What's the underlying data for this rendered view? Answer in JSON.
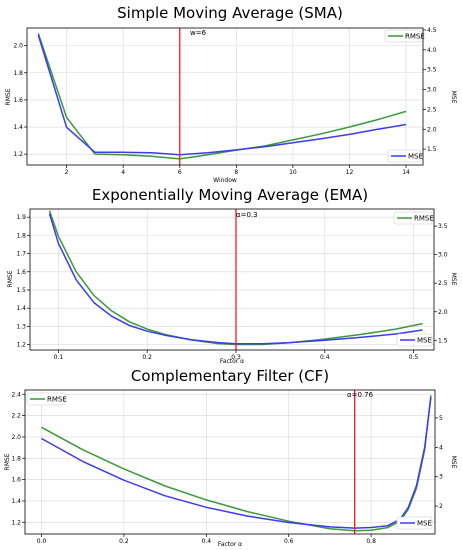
{
  "colors": {
    "rmse": "#3a9a3a",
    "mse": "#3b3bf0",
    "marker": "#ff1a1a",
    "grid": "#d9d9d9"
  },
  "chart_data": [
    {
      "type": "line",
      "title": "Simple Moving Average (SMA)",
      "xlabel": "Window",
      "ylabel": "RMSE",
      "y2label": "MSE",
      "xlim": [
        0.6,
        14.6
      ],
      "ylim": [
        1.12,
        2.13
      ],
      "y2lim": [
        1.1,
        4.55
      ],
      "xticks": [
        2,
        4,
        6,
        8,
        10,
        12,
        14
      ],
      "yticks": [
        1.2,
        1.4,
        1.6,
        1.8,
        2.0
      ],
      "y2ticks": [
        1.5,
        2.0,
        2.5,
        3.0,
        3.5,
        4.0,
        4.5
      ],
      "xtick_labels": [
        "2",
        "4",
        "6",
        "8",
        "10",
        "12",
        "14"
      ],
      "ytick_labels": [
        "1.2",
        "1.4",
        "1.6",
        "1.8",
        "2.0"
      ],
      "y2tick_labels": [
        "1.5",
        "2.0",
        "2.5",
        "3.0",
        "3.5",
        "4.0",
        "4.5"
      ],
      "marker": {
        "x": 6,
        "label": "w=6"
      },
      "legend_rmse": "top-right",
      "legend_mse": "bottom-right",
      "series": [
        {
          "name": "RMSE",
          "axis": "left",
          "x": [
            1,
            2,
            3,
            4,
            5,
            6,
            7,
            8,
            9,
            10,
            11,
            12,
            13,
            14
          ],
          "values": [
            2.09,
            1.47,
            1.2,
            1.195,
            1.185,
            1.165,
            1.195,
            1.23,
            1.26,
            1.305,
            1.35,
            1.4,
            1.455,
            1.515
          ]
        },
        {
          "name": "MSE",
          "axis": "right",
          "x": [
            1,
            2,
            3,
            4,
            5,
            6,
            7,
            8,
            9,
            10,
            11,
            12,
            13,
            14
          ],
          "values": [
            4.37,
            2.05,
            1.42,
            1.42,
            1.41,
            1.36,
            1.41,
            1.48,
            1.56,
            1.66,
            1.76,
            1.87,
            2.0,
            2.12
          ]
        }
      ]
    },
    {
      "type": "line",
      "title": "Exponentially Moving Average (EMA)",
      "xlabel": "Factor α",
      "ylabel": "RMSE",
      "y2label": "MSE",
      "xlim": [
        0.068,
        0.523
      ],
      "ylim": [
        1.17,
        1.945
      ],
      "y2lim": [
        1.33,
        3.8
      ],
      "xticks": [
        0.1,
        0.2,
        0.3,
        0.4,
        0.5
      ],
      "yticks": [
        1.2,
        1.3,
        1.4,
        1.5,
        1.6,
        1.7,
        1.8,
        1.9
      ],
      "y2ticks": [
        1.5,
        2.0,
        2.5,
        3.0,
        3.5
      ],
      "xtick_labels": [
        "0.1",
        "0.2",
        "0.3",
        "0.4",
        "0.5"
      ],
      "ytick_labels": [
        "1.2",
        "1.3",
        "1.4",
        "1.5",
        "1.6",
        "1.7",
        "1.8",
        "1.9"
      ],
      "y2tick_labels": [
        "1.5",
        "2.0",
        "2.5",
        "3.0",
        "3.5"
      ],
      "marker": {
        "x": 0.3,
        "label": "α=0.3"
      },
      "legend_rmse": "top-right",
      "legend_mse": "bottom-right",
      "series": [
        {
          "name": "RMSE",
          "axis": "left",
          "x": [
            0.09,
            0.1,
            0.12,
            0.14,
            0.16,
            0.18,
            0.2,
            0.22,
            0.25,
            0.28,
            0.3,
            0.33,
            0.36,
            0.4,
            0.44,
            0.48,
            0.51
          ],
          "values": [
            1.935,
            1.795,
            1.6,
            1.47,
            1.385,
            1.325,
            1.285,
            1.255,
            1.225,
            1.205,
            1.2,
            1.2,
            1.21,
            1.23,
            1.255,
            1.285,
            1.315
          ]
        },
        {
          "name": "MSE",
          "axis": "right",
          "x": [
            0.09,
            0.1,
            0.12,
            0.14,
            0.16,
            0.18,
            0.2,
            0.22,
            0.25,
            0.28,
            0.3,
            0.33,
            0.36,
            0.4,
            0.44,
            0.48,
            0.51
          ],
          "values": [
            3.72,
            3.2,
            2.56,
            2.16,
            1.92,
            1.76,
            1.66,
            1.59,
            1.51,
            1.46,
            1.44,
            1.44,
            1.46,
            1.5,
            1.55,
            1.61,
            1.68
          ]
        }
      ]
    },
    {
      "type": "line",
      "title": "Complementary Filter (CF)",
      "xlabel": "Factor α",
      "ylabel": "RMSE",
      "y2label": "MSE",
      "xlim": [
        -0.04,
        0.955
      ],
      "ylim": [
        1.09,
        2.44
      ],
      "y2lim": [
        1.05,
        5.95
      ],
      "xticks": [
        0.0,
        0.2,
        0.4,
        0.6,
        0.8
      ],
      "yticks": [
        1.2,
        1.4,
        1.6,
        1.8,
        2.0,
        2.2,
        2.4
      ],
      "y2ticks": [
        2,
        3,
        4,
        5
      ],
      "xtick_labels": [
        "0.0",
        "0.2",
        "0.4",
        "0.6",
        "0.8"
      ],
      "ytick_labels": [
        "1.2",
        "1.4",
        "1.6",
        "1.8",
        "2.0",
        "2.2",
        "2.4"
      ],
      "y2tick_labels": [
        "2",
        "3",
        "4",
        "5"
      ],
      "marker": {
        "x": 0.76,
        "label": "α=0.76"
      },
      "legend_rmse": "top-left",
      "legend_mse": "bottom-right",
      "series": [
        {
          "name": "RMSE",
          "axis": "left",
          "x": [
            0.0,
            0.1,
            0.2,
            0.3,
            0.4,
            0.5,
            0.6,
            0.7,
            0.76,
            0.8,
            0.84,
            0.87,
            0.89,
            0.91,
            0.93,
            0.945
          ],
          "values": [
            2.09,
            1.88,
            1.7,
            1.54,
            1.41,
            1.3,
            1.21,
            1.14,
            1.12,
            1.125,
            1.15,
            1.21,
            1.32,
            1.52,
            1.88,
            2.39
          ]
        },
        {
          "name": "MSE",
          "axis": "right",
          "x": [
            0.0,
            0.1,
            0.2,
            0.3,
            0.4,
            0.5,
            0.6,
            0.7,
            0.76,
            0.8,
            0.84,
            0.87,
            0.89,
            0.91,
            0.93,
            0.945
          ],
          "values": [
            4.3,
            3.52,
            2.88,
            2.35,
            1.96,
            1.66,
            1.44,
            1.29,
            1.25,
            1.27,
            1.33,
            1.55,
            1.95,
            2.7,
            4.0,
            5.7
          ]
        }
      ]
    }
  ]
}
